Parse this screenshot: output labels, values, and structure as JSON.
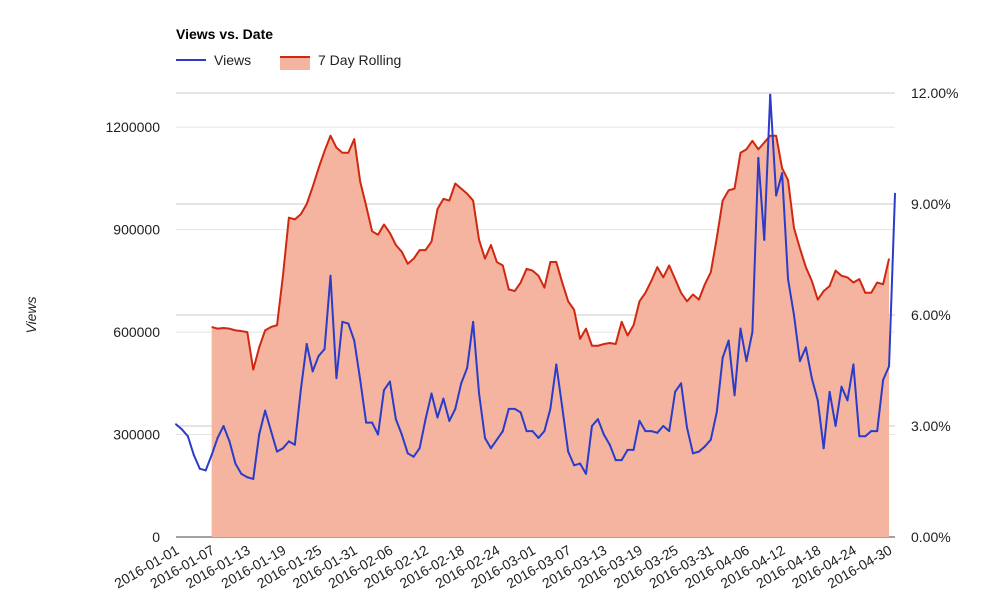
{
  "chart_data": {
    "type": "line",
    "title": "Views vs. Date",
    "ylabel": "Views",
    "ylim": [
      0,
      1300000
    ],
    "y2lim": [
      0,
      0.12
    ],
    "y_ticks": [
      "0",
      "300000",
      "600000",
      "900000",
      "1200000"
    ],
    "y2_ticks": [
      "0.00%",
      "3.00%",
      "6.00%",
      "9.00%",
      "12.00%"
    ],
    "x_tick_labels": [
      "2016-01-01",
      "2016-01-07",
      "2016-01-13",
      "2016-01-19",
      "2016-01-25",
      "2016-01-31",
      "2016-02-06",
      "2016-02-12",
      "2016-02-18",
      "2016-02-24",
      "2016-03-01",
      "2016-03-07",
      "2016-03-13",
      "2016-03-19",
      "2016-03-25",
      "2016-03-31",
      "2016-04-06",
      "2016-04-12",
      "2016-04-18",
      "2016-04-24",
      "2016-04-30"
    ],
    "x_start": "2016-01-01",
    "x_end": "2016-05-01",
    "colors": {
      "views": "#2a3cc8",
      "rolling_line": "#d02810",
      "rolling_fill": "#f4b4a0"
    },
    "legend_position": "top-left",
    "grid": true,
    "series": [
      {
        "name": "Views",
        "axis": "left",
        "style": "line",
        "values": [
          330000,
          315000,
          295000,
          240000,
          200000,
          195000,
          240000,
          290000,
          325000,
          280000,
          215000,
          185000,
          175000,
          170000,
          300000,
          370000,
          310000,
          250000,
          260000,
          280000,
          270000,
          430000,
          565000,
          485000,
          530000,
          550000,
          765000,
          465000,
          630000,
          625000,
          575000,
          460000,
          335000,
          335000,
          300000,
          430000,
          455000,
          345000,
          300000,
          245000,
          235000,
          260000,
          345000,
          420000,
          350000,
          405000,
          340000,
          375000,
          450000,
          495000,
          630000,
          420000,
          290000,
          260000,
          285000,
          310000,
          375000,
          375000,
          365000,
          310000,
          310000,
          290000,
          310000,
          375000,
          505000,
          380000,
          250000,
          210000,
          215000,
          185000,
          325000,
          345000,
          300000,
          270000,
          225000,
          225000,
          255000,
          255000,
          340000,
          310000,
          310000,
          305000,
          325000,
          310000,
          425000,
          450000,
          320000,
          245000,
          250000,
          265000,
          285000,
          365000,
          525000,
          575000,
          415000,
          610000,
          515000,
          600000,
          1110000,
          870000,
          1295000,
          1000000,
          1065000,
          755000,
          650000,
          515000,
          555000,
          465000,
          400000,
          260000,
          425000,
          325000,
          440000,
          400000,
          505000,
          295000,
          295000,
          310000,
          310000,
          460000,
          500000,
          1005000
        ]
      },
      {
        "name": "7 Day Rolling",
        "axis": "left",
        "style": "area",
        "start_index": 6,
        "values": [
          615000,
          610000,
          612000,
          610000,
          605000,
          603000,
          600000,
          490000,
          555000,
          605000,
          615000,
          620000,
          765000,
          935000,
          930000,
          945000,
          975000,
          1025000,
          1080000,
          1130000,
          1175000,
          1140000,
          1125000,
          1125000,
          1165000,
          1040000,
          970000,
          895000,
          885000,
          915000,
          890000,
          855000,
          835000,
          800000,
          815000,
          840000,
          840000,
          865000,
          960000,
          990000,
          985000,
          1035000,
          1020000,
          1005000,
          985000,
          870000,
          815000,
          855000,
          805000,
          795000,
          725000,
          720000,
          745000,
          785000,
          780000,
          765000,
          730000,
          805000,
          805000,
          745000,
          690000,
          665000,
          580000,
          610000,
          560000,
          560000,
          565000,
          568000,
          565000,
          630000,
          590000,
          620000,
          690000,
          715000,
          750000,
          790000,
          760000,
          795000,
          755000,
          715000,
          690000,
          710000,
          695000,
          740000,
          775000,
          875000,
          985000,
          1015000,
          1020000,
          1125000,
          1135000,
          1160000,
          1135000,
          1155000,
          1175000,
          1175000,
          1080000,
          1045000,
          905000,
          845000,
          790000,
          750000,
          695000,
          720000,
          735000,
          780000,
          765000,
          760000,
          745000,
          755000,
          715000,
          715000,
          745000,
          740000,
          815000
        ]
      }
    ]
  }
}
